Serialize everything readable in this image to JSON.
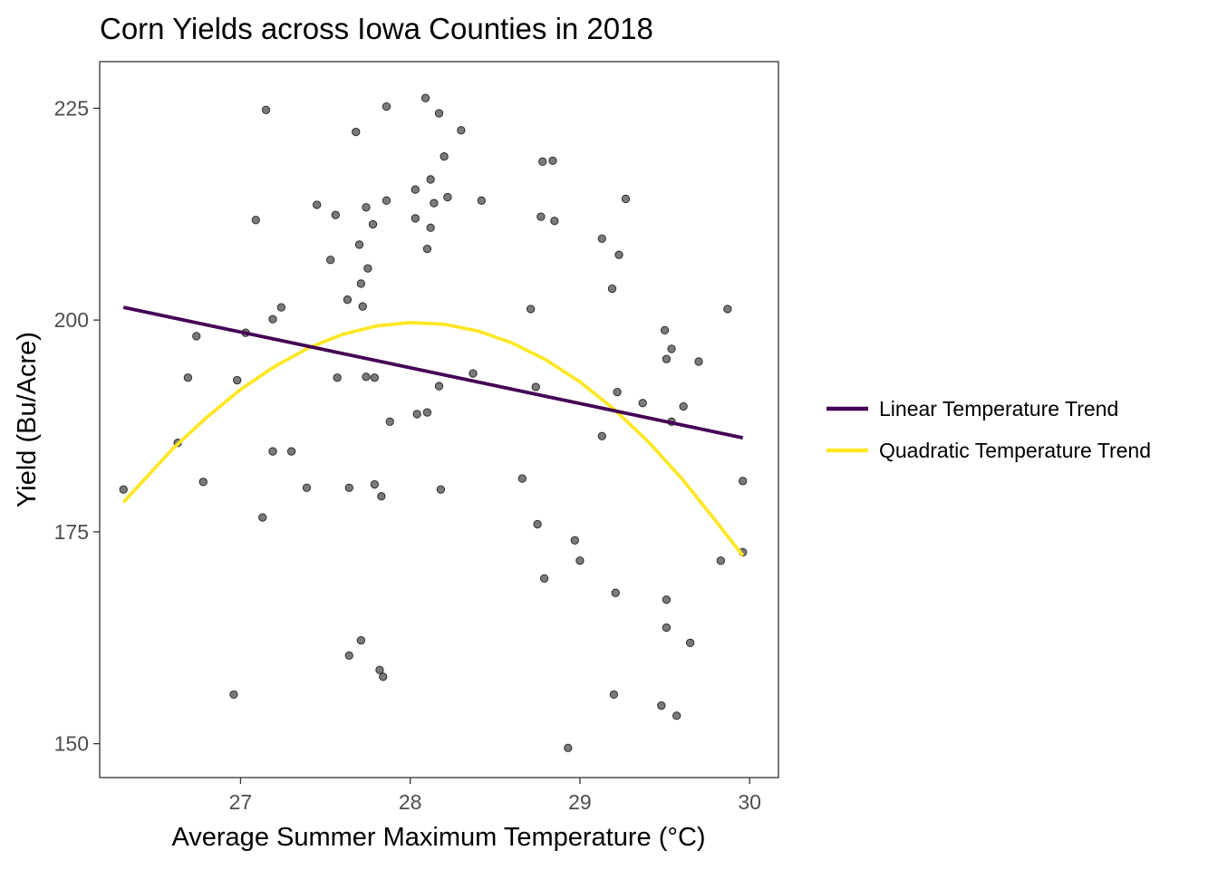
{
  "chart_data": {
    "type": "scatter",
    "title": "Corn Yields across Iowa Counties in 2018",
    "xlabel": "Average Summer Maximum Temperature (°C)",
    "ylabel": "Yield (Bu/Acre)",
    "xlim": [
      26.17,
      30.17
    ],
    "ylim": [
      146.0,
      230.5
    ],
    "x_ticks": [
      27,
      28,
      29,
      30
    ],
    "y_ticks": [
      150,
      175,
      200,
      225
    ],
    "grid": false,
    "legend_position": "right",
    "points": {
      "color": "#4d4d4d",
      "values": [
        [
          26.31,
          180.0
        ],
        [
          26.63,
          185.5
        ],
        [
          26.69,
          193.2
        ],
        [
          26.74,
          198.1
        ],
        [
          26.78,
          180.9
        ],
        [
          26.96,
          155.8
        ],
        [
          26.98,
          192.9
        ],
        [
          27.03,
          198.5
        ],
        [
          27.09,
          211.8
        ],
        [
          27.13,
          176.7
        ],
        [
          27.15,
          224.8
        ],
        [
          27.19,
          200.1
        ],
        [
          27.19,
          184.5
        ],
        [
          27.24,
          201.5
        ],
        [
          27.3,
          184.5
        ],
        [
          27.39,
          180.2
        ],
        [
          27.45,
          213.6
        ],
        [
          27.53,
          207.1
        ],
        [
          27.56,
          212.4
        ],
        [
          27.57,
          193.2
        ],
        [
          27.63,
          202.4
        ],
        [
          27.64,
          160.4
        ],
        [
          27.64,
          180.2
        ],
        [
          27.68,
          222.2
        ],
        [
          27.7,
          208.9
        ],
        [
          27.71,
          204.3
        ],
        [
          27.71,
          162.2
        ],
        [
          27.72,
          201.6
        ],
        [
          27.74,
          213.3
        ],
        [
          27.75,
          206.1
        ],
        [
          27.74,
          193.3
        ],
        [
          27.78,
          211.3
        ],
        [
          27.79,
          193.2
        ],
        [
          27.79,
          180.6
        ],
        [
          27.82,
          158.7
        ],
        [
          27.83,
          179.2
        ],
        [
          27.84,
          157.9
        ],
        [
          27.86,
          214.1
        ],
        [
          27.86,
          225.2
        ],
        [
          27.88,
          188.0
        ],
        [
          28.03,
          215.4
        ],
        [
          28.03,
          212.0
        ],
        [
          28.04,
          188.9
        ],
        [
          28.09,
          226.2
        ],
        [
          28.1,
          189.1
        ],
        [
          28.1,
          208.4
        ],
        [
          28.12,
          216.6
        ],
        [
          28.12,
          210.9
        ],
        [
          28.14,
          213.8
        ],
        [
          28.17,
          224.4
        ],
        [
          28.17,
          192.2
        ],
        [
          28.18,
          180.0
        ],
        [
          28.2,
          219.3
        ],
        [
          28.22,
          214.5
        ],
        [
          28.3,
          222.4
        ],
        [
          28.37,
          193.7
        ],
        [
          28.42,
          214.1
        ],
        [
          28.66,
          181.3
        ],
        [
          28.71,
          201.3
        ],
        [
          28.74,
          192.1
        ],
        [
          28.75,
          175.9
        ],
        [
          28.77,
          212.2
        ],
        [
          28.78,
          218.7
        ],
        [
          28.79,
          169.5
        ],
        [
          28.84,
          218.8
        ],
        [
          28.85,
          211.7
        ],
        [
          28.93,
          149.5
        ],
        [
          28.97,
          174.0
        ],
        [
          29.0,
          171.6
        ],
        [
          29.13,
          209.6
        ],
        [
          29.13,
          186.3
        ],
        [
          29.19,
          203.7
        ],
        [
          29.2,
          155.8
        ],
        [
          29.21,
          167.8
        ],
        [
          29.22,
          191.5
        ],
        [
          29.23,
          207.7
        ],
        [
          29.27,
          214.3
        ],
        [
          29.37,
          190.2
        ],
        [
          29.48,
          154.5
        ],
        [
          29.5,
          198.8
        ],
        [
          29.51,
          195.4
        ],
        [
          29.51,
          167.0
        ],
        [
          29.51,
          163.7
        ],
        [
          29.54,
          196.6
        ],
        [
          29.54,
          188.0
        ],
        [
          29.57,
          153.3
        ],
        [
          29.61,
          189.8
        ],
        [
          29.65,
          161.9
        ],
        [
          29.7,
          195.1
        ],
        [
          29.83,
          171.6
        ],
        [
          29.87,
          201.3
        ],
        [
          29.96,
          181.0
        ],
        [
          29.96,
          172.6
        ]
      ]
    },
    "series": [
      {
        "name": "Linear Temperature Trend",
        "color": "#440154",
        "type": "line",
        "x": [
          26.31,
          29.96
        ],
        "y": [
          201.5,
          186.1
        ]
      },
      {
        "name": "Quadratic Temperature Trend",
        "color": "#FDE725",
        "type": "line",
        "x": [
          26.31,
          26.6,
          26.8,
          27.0,
          27.2,
          27.4,
          27.6,
          27.8,
          28.0,
          28.2,
          28.4,
          28.6,
          28.8,
          29.0,
          29.2,
          29.4,
          29.6,
          29.8,
          29.96
        ],
        "y": [
          178.5,
          184.8,
          188.5,
          191.8,
          194.5,
          196.7,
          198.3,
          199.3,
          199.7,
          199.5,
          198.7,
          197.3,
          195.3,
          192.7,
          189.5,
          185.7,
          181.3,
          176.3,
          172.2
        ]
      }
    ]
  }
}
